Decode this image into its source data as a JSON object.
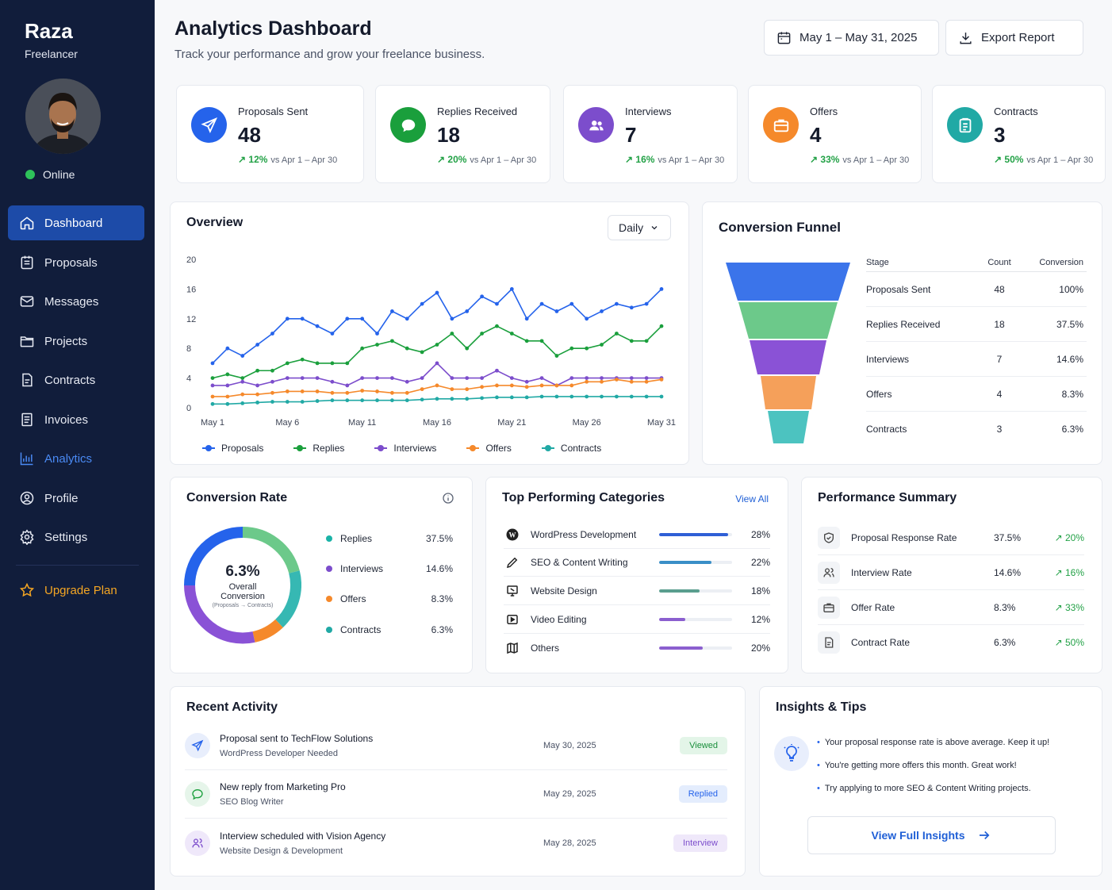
{
  "sidebar": {
    "user_name": "Raza",
    "user_role": "Freelancer",
    "status": "Online",
    "nav": [
      "Dashboard",
      "Proposals",
      "Messages",
      "Projects",
      "Contracts",
      "Invoices",
      "Analytics",
      "Profile",
      "Settings"
    ],
    "upgrade": "Upgrade Plan"
  },
  "header": {
    "title": "Analytics Dashboard",
    "subtitle": "Track your performance and grow your freelance business.",
    "date_range": "May 1 – May 31, 2025",
    "export": "Export Report"
  },
  "kpis": [
    {
      "label": "Proposals Sent",
      "value": "48",
      "change": "12%",
      "compare": "vs Apr 1 – Apr 30",
      "color": "#2563eb"
    },
    {
      "label": "Replies Received",
      "value": "18",
      "change": "20%",
      "compare": "vs Apr 1 – Apr 30",
      "color": "#1a9f3c"
    },
    {
      "label": "Interviews",
      "value": "7",
      "change": "16%",
      "compare": "vs Apr 1 – Apr 30",
      "color": "#7c4dcc"
    },
    {
      "label": "Offers",
      "value": "4",
      "change": "33%",
      "compare": "vs Apr 1 – Apr 30",
      "color": "#f5892b"
    },
    {
      "label": "Contracts",
      "value": "3",
      "change": "50%",
      "compare": "vs Apr 1 – Apr 30",
      "color": "#21a9a5"
    }
  ],
  "overview": {
    "title": "Overview",
    "period": "Daily"
  },
  "chart_data": {
    "type": "line",
    "x": [
      "May 1",
      "May 2",
      "May 3",
      "May 4",
      "May 5",
      "May 6",
      "May 7",
      "May 8",
      "May 9",
      "May 10",
      "May 11",
      "May 12",
      "May 13",
      "May 14",
      "May 15",
      "May 16",
      "May 17",
      "May 18",
      "May 19",
      "May 20",
      "May 21",
      "May 22",
      "May 23",
      "May 24",
      "May 25",
      "May 26",
      "May 27",
      "May 28",
      "May 29",
      "May 30",
      "May 31"
    ],
    "x_ticks": [
      "May 1",
      "May 6",
      "May 11",
      "May 16",
      "May 21",
      "May 26",
      "May 31"
    ],
    "ylim": [
      0,
      20
    ],
    "y_ticks": [
      0,
      4,
      8,
      12,
      16,
      20
    ],
    "series": [
      {
        "name": "Proposals",
        "color": "#2563eb",
        "values": [
          6,
          8,
          7,
          8.5,
          10,
          12,
          12,
          11,
          10,
          12,
          12,
          10,
          13,
          12,
          14,
          15.5,
          12,
          13,
          15,
          14,
          16,
          12,
          14,
          13,
          14,
          12,
          13,
          14,
          13.5,
          14,
          16
        ]
      },
      {
        "name": "Replies",
        "color": "#1a9f3c",
        "values": [
          4,
          4.5,
          4,
          5,
          5,
          6,
          6.5,
          6,
          6,
          6,
          8,
          8.5,
          9,
          8,
          7.5,
          8.5,
          10,
          8,
          10,
          11,
          10,
          9,
          9,
          7,
          8,
          8,
          8.5,
          10,
          9,
          9,
          11
        ]
      },
      {
        "name": "Interviews",
        "color": "#7c4dcc",
        "values": [
          3,
          3,
          3.5,
          3,
          3.5,
          4,
          4,
          4,
          3.5,
          3,
          4,
          4,
          4,
          3.5,
          4,
          6,
          4,
          4,
          4,
          5,
          4,
          3.5,
          4,
          3,
          4,
          4,
          4,
          4,
          4,
          4,
          4
        ]
      },
      {
        "name": "Offers",
        "color": "#f5892b",
        "values": [
          1.5,
          1.5,
          1.8,
          1.8,
          2,
          2.2,
          2.2,
          2.2,
          2,
          2,
          2.3,
          2.2,
          2,
          2,
          2.5,
          3,
          2.5,
          2.5,
          2.8,
          3,
          3,
          2.8,
          3,
          3,
          3,
          3.5,
          3.5,
          3.8,
          3.5,
          3.5,
          3.8
        ]
      },
      {
        "name": "Contracts",
        "color": "#21a9a5",
        "values": [
          0.5,
          0.5,
          0.6,
          0.7,
          0.8,
          0.8,
          0.8,
          0.9,
          1,
          1,
          1,
          1,
          1,
          1,
          1.1,
          1.2,
          1.2,
          1.2,
          1.3,
          1.4,
          1.4,
          1.4,
          1.5,
          1.5,
          1.5,
          1.5,
          1.5,
          1.5,
          1.5,
          1.5,
          1.5
        ]
      }
    ]
  },
  "funnel": {
    "title": "Conversion Funnel",
    "headers": [
      "Stage",
      "Count",
      "Conversion"
    ],
    "rows": [
      {
        "stage": "Proposals Sent",
        "count": "48",
        "conv": "100%",
        "color": "#3b74ea"
      },
      {
        "stage": "Replies Received",
        "count": "18",
        "conv": "37.5%",
        "color": "#6cc98a"
      },
      {
        "stage": "Interviews",
        "count": "7",
        "conv": "14.6%",
        "color": "#8a52d6"
      },
      {
        "stage": "Offers",
        "count": "4",
        "conv": "8.3%",
        "color": "#f5a05a"
      },
      {
        "stage": "Contracts",
        "count": "3",
        "conv": "6.3%",
        "color": "#4cc3c0"
      }
    ]
  },
  "conversion_rate": {
    "title": "Conversion Rate",
    "center_value": "6.3%",
    "center_label1": "Overall",
    "center_label2": "Conversion",
    "center_note": "(Proposals → Contracts)",
    "items": [
      {
        "name": "Replies",
        "pct": "37.5%",
        "color": "#1ab3a7"
      },
      {
        "name": "Interviews",
        "pct": "14.6%",
        "color": "#7c4dcc"
      },
      {
        "name": "Offers",
        "pct": "8.3%",
        "color": "#f5892b"
      },
      {
        "name": "Contracts",
        "pct": "6.3%",
        "color": "#21a9a5"
      }
    ]
  },
  "categories": {
    "title": "Top Performing Categories",
    "view_all": "View All",
    "items": [
      {
        "name": "WordPress Development",
        "pct": "28%",
        "fill": 0.95,
        "color": "#2f5fd6",
        "icon": "wordpress-icon"
      },
      {
        "name": "SEO & Content Writing",
        "pct": "22%",
        "fill": 0.72,
        "color": "#3a8fc7",
        "icon": "pen-icon"
      },
      {
        "name": "Website Design",
        "pct": "18%",
        "fill": 0.55,
        "color": "#5a9e8e",
        "icon": "design-icon"
      },
      {
        "name": "Video Editing",
        "pct": "12%",
        "fill": 0.36,
        "color": "#8b5fcf",
        "icon": "video-icon"
      },
      {
        "name": "Others",
        "pct": "20%",
        "fill": 0.6,
        "color": "#8b5fcf",
        "icon": "others-icon"
      }
    ]
  },
  "performance": {
    "title": "Performance Summary",
    "rows": [
      {
        "name": "Proposal Response Rate",
        "value": "37.5%",
        "trend": "20%"
      },
      {
        "name": "Interview Rate",
        "value": "14.6%",
        "trend": "16%"
      },
      {
        "name": "Offer Rate",
        "value": "8.3%",
        "trend": "33%"
      },
      {
        "name": "Contract Rate",
        "value": "6.3%",
        "trend": "50%"
      }
    ]
  },
  "activity": {
    "title": "Recent Activity",
    "items": [
      {
        "title": "Proposal sent to TechFlow Solutions",
        "sub": "WordPress Developer Needed",
        "date": "May 30, 2025",
        "badge": "Viewed",
        "badge_color": "#1a8f3c",
        "badge_bg": "#e3f5e8"
      },
      {
        "title": "New reply from Marketing Pro",
        "sub": "SEO Blog Writer",
        "date": "May 29, 2025",
        "badge": "Replied",
        "badge_color": "#2563eb",
        "badge_bg": "#e4edfd"
      },
      {
        "title": "Interview scheduled with Vision Agency",
        "sub": "Website Design & Development",
        "date": "May 28, 2025",
        "badge": "Interview",
        "badge_color": "#7c4dcc",
        "badge_bg": "#efe8fa"
      }
    ]
  },
  "insights": {
    "title": "Insights & Tips",
    "tips": [
      "Your proposal response rate is above average. Keep it up!",
      "You're getting more offers this month. Great work!",
      "Try applying to more SEO & Content Writing projects."
    ],
    "button": "View Full Insights"
  }
}
